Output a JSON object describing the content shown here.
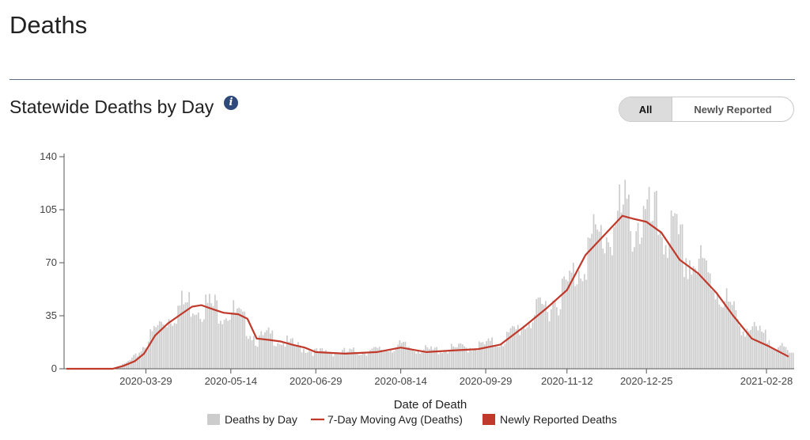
{
  "page": {
    "title": "Deaths",
    "section_title": "Statewide Deaths by Day",
    "info_icon": "info-icon",
    "toggle": {
      "options": [
        "All",
        "Newly Reported"
      ],
      "selected": "All"
    }
  },
  "colors": {
    "bars": "#cccccc",
    "avg_line": "#c0392b",
    "newly_reported": "#c0392b",
    "accent": "#2f4a7a"
  },
  "chart_data": {
    "type": "bar",
    "title": "",
    "xlabel": "Date of Death",
    "ylabel": "",
    "ylim": [
      0,
      140
    ],
    "yticks": [
      0,
      35,
      70,
      105,
      140
    ],
    "xrange": [
      "2020-02-15",
      "2021-03-15"
    ],
    "xticks": [
      "2020-03-29",
      "2020-05-14",
      "2020-06-29",
      "2020-08-14",
      "2020-09-29",
      "2020-11-12",
      "2020-12-25",
      "2021-02-28"
    ],
    "grid": false,
    "legend_position": "bottom",
    "legend": [
      "Deaths by Day",
      "7-Day Moving Avg (Deaths)",
      "Newly Reported Deaths"
    ],
    "bars_anchors": [
      [
        "2020-02-15",
        0
      ],
      [
        "2020-03-10",
        0
      ],
      [
        "2020-03-17",
        3
      ],
      [
        "2020-03-23",
        8
      ],
      [
        "2020-03-29",
        18
      ],
      [
        "2020-04-04",
        28
      ],
      [
        "2020-04-10",
        34
      ],
      [
        "2020-04-17",
        42
      ],
      [
        "2020-04-23",
        44
      ],
      [
        "2020-04-30",
        42
      ],
      [
        "2020-05-07",
        40
      ],
      [
        "2020-05-14",
        38
      ],
      [
        "2020-05-21",
        30
      ],
      [
        "2020-05-28",
        19
      ],
      [
        "2020-06-04",
        22
      ],
      [
        "2020-06-11",
        18
      ],
      [
        "2020-06-18",
        15
      ],
      [
        "2020-06-29",
        11
      ],
      [
        "2020-07-15",
        11
      ],
      [
        "2020-08-01",
        12
      ],
      [
        "2020-08-14",
        15
      ],
      [
        "2020-08-28",
        12
      ],
      [
        "2020-09-10",
        13
      ],
      [
        "2020-09-25",
        15
      ],
      [
        "2020-10-07",
        18
      ],
      [
        "2020-10-20",
        30
      ],
      [
        "2020-11-01",
        42
      ],
      [
        "2020-11-12",
        54
      ],
      [
        "2020-11-22",
        78
      ],
      [
        "2020-12-02",
        88
      ],
      [
        "2020-12-12",
        100
      ],
      [
        "2020-12-20",
        98
      ],
      [
        "2020-12-25",
        95
      ],
      [
        "2021-01-04",
        92
      ],
      [
        "2021-01-14",
        75
      ],
      [
        "2021-01-24",
        65
      ],
      [
        "2021-02-03",
        50
      ],
      [
        "2021-02-13",
        30
      ],
      [
        "2021-02-28",
        20
      ],
      [
        "2021-03-12",
        10
      ]
    ],
    "moving_avg_anchors": [
      [
        "2020-02-15",
        0
      ],
      [
        "2020-03-11",
        0
      ],
      [
        "2020-03-17",
        2
      ],
      [
        "2020-03-23",
        5
      ],
      [
        "2020-03-28",
        10
      ],
      [
        "2020-04-03",
        22
      ],
      [
        "2020-04-10",
        30
      ],
      [
        "2020-04-17",
        36
      ],
      [
        "2020-04-23",
        41
      ],
      [
        "2020-04-28",
        42
      ],
      [
        "2020-05-05",
        39
      ],
      [
        "2020-05-10",
        37
      ],
      [
        "2020-05-18",
        36
      ],
      [
        "2020-05-23",
        33
      ],
      [
        "2020-05-28",
        20
      ],
      [
        "2020-06-04",
        19
      ],
      [
        "2020-06-10",
        18
      ],
      [
        "2020-06-16",
        16
      ],
      [
        "2020-06-23",
        14
      ],
      [
        "2020-06-29",
        11
      ],
      [
        "2020-07-15",
        10
      ],
      [
        "2020-08-01",
        11
      ],
      [
        "2020-08-14",
        14
      ],
      [
        "2020-08-28",
        11
      ],
      [
        "2020-09-10",
        12
      ],
      [
        "2020-09-25",
        13
      ],
      [
        "2020-10-07",
        16
      ],
      [
        "2020-10-20",
        28
      ],
      [
        "2020-11-01",
        40
      ],
      [
        "2020-11-12",
        52
      ],
      [
        "2020-11-22",
        75
      ],
      [
        "2020-12-02",
        88
      ],
      [
        "2020-12-12",
        101
      ],
      [
        "2020-12-18",
        99
      ],
      [
        "2020-12-25",
        97
      ],
      [
        "2021-01-02",
        90
      ],
      [
        "2021-01-12",
        72
      ],
      [
        "2021-01-22",
        63
      ],
      [
        "2021-02-01",
        50
      ],
      [
        "2021-02-10",
        35
      ],
      [
        "2021-02-20",
        20
      ],
      [
        "2021-03-01",
        15
      ],
      [
        "2021-03-12",
        8
      ]
    ]
  }
}
